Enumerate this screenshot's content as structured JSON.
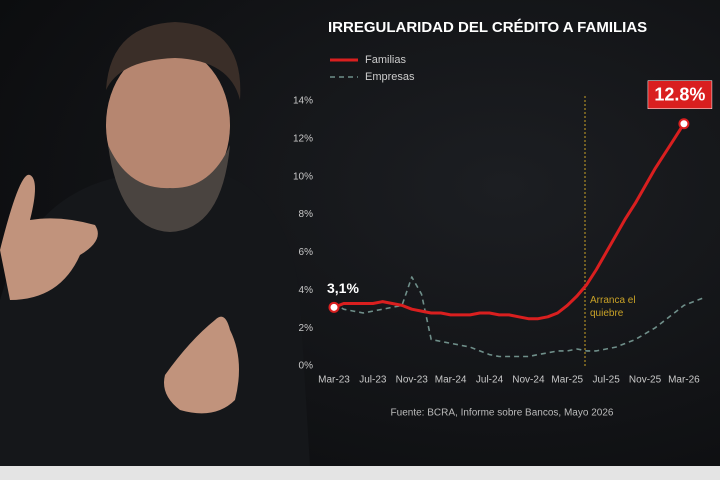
{
  "chart_data": {
    "type": "line",
    "title": "IRREGULARIDAD DEL CRÉDITO A FAMILIAS",
    "source": "Fuente: BCRA, Informe sobre Bancos, Mayo 2026",
    "annotation": "Arranca el quiebre",
    "categories": [
      "Mar-23",
      null,
      null,
      null,
      "Jul-23",
      null,
      null,
      null,
      "Nov-23",
      null,
      null,
      null,
      "Mar-24",
      null,
      null,
      null,
      "Jul-24",
      null,
      null,
      null,
      "Nov-24",
      null,
      null,
      null,
      "Mar-25",
      null,
      null,
      null,
      "Jul-25",
      null,
      null,
      null,
      "Nov-25",
      null,
      null,
      null,
      "Mar-26",
      null,
      null
    ],
    "series": [
      {
        "name": "Familias",
        "color": "#d91f1f",
        "dashed": false,
        "values": [
          3.1,
          3.3,
          3.3,
          3.3,
          3.3,
          3.4,
          3.3,
          3.2,
          3.0,
          2.9,
          2.8,
          2.8,
          2.7,
          2.7,
          2.7,
          2.8,
          2.8,
          2.7,
          2.7,
          2.6,
          2.5,
          2.5,
          2.6,
          2.8,
          3.2,
          3.7,
          4.3,
          5.1,
          6.0,
          6.9,
          7.8,
          8.6,
          9.5,
          10.4,
          11.2,
          12.0,
          12.8,
          null,
          null
        ],
        "value_labels": [
          "3,1%",
          null,
          null,
          null,
          null,
          null,
          null,
          null,
          null,
          null,
          null,
          null,
          null,
          null,
          null,
          null,
          null,
          null,
          null,
          null,
          null,
          null,
          null,
          null,
          null,
          null,
          null,
          null,
          null,
          null,
          null,
          null,
          null,
          null,
          null,
          null,
          "12.8%",
          null,
          null
        ]
      },
      {
        "name": "Empresas",
        "color": "#6f8f8a",
        "dashed": true,
        "values": [
          3.3,
          3.0,
          2.9,
          2.8,
          2.9,
          3.0,
          3.1,
          3.2,
          4.7,
          3.8,
          1.4,
          1.3,
          1.2,
          1.1,
          1.0,
          0.8,
          0.6,
          0.5,
          0.5,
          0.5,
          0.5,
          0.6,
          0.7,
          0.8,
          0.8,
          0.9,
          0.8,
          0.8,
          0.9,
          1.0,
          1.2,
          1.4,
          1.7,
          2.0,
          2.4,
          2.8,
          3.2,
          3.4,
          3.6
        ]
      }
    ],
    "ylim": [
      0,
      14
    ],
    "yticks": [
      {
        "value": 0,
        "label": "0%"
      },
      {
        "value": 2,
        "label": "2%"
      },
      {
        "value": 4,
        "label": "4%"
      },
      {
        "value": 6,
        "label": "6%"
      },
      {
        "value": 8,
        "label": "8%"
      },
      {
        "value": 10,
        "label": "10%"
      },
      {
        "value": 12,
        "label": "12%"
      },
      {
        "value": 14,
        "label": "14%"
      }
    ],
    "grid": false
  }
}
